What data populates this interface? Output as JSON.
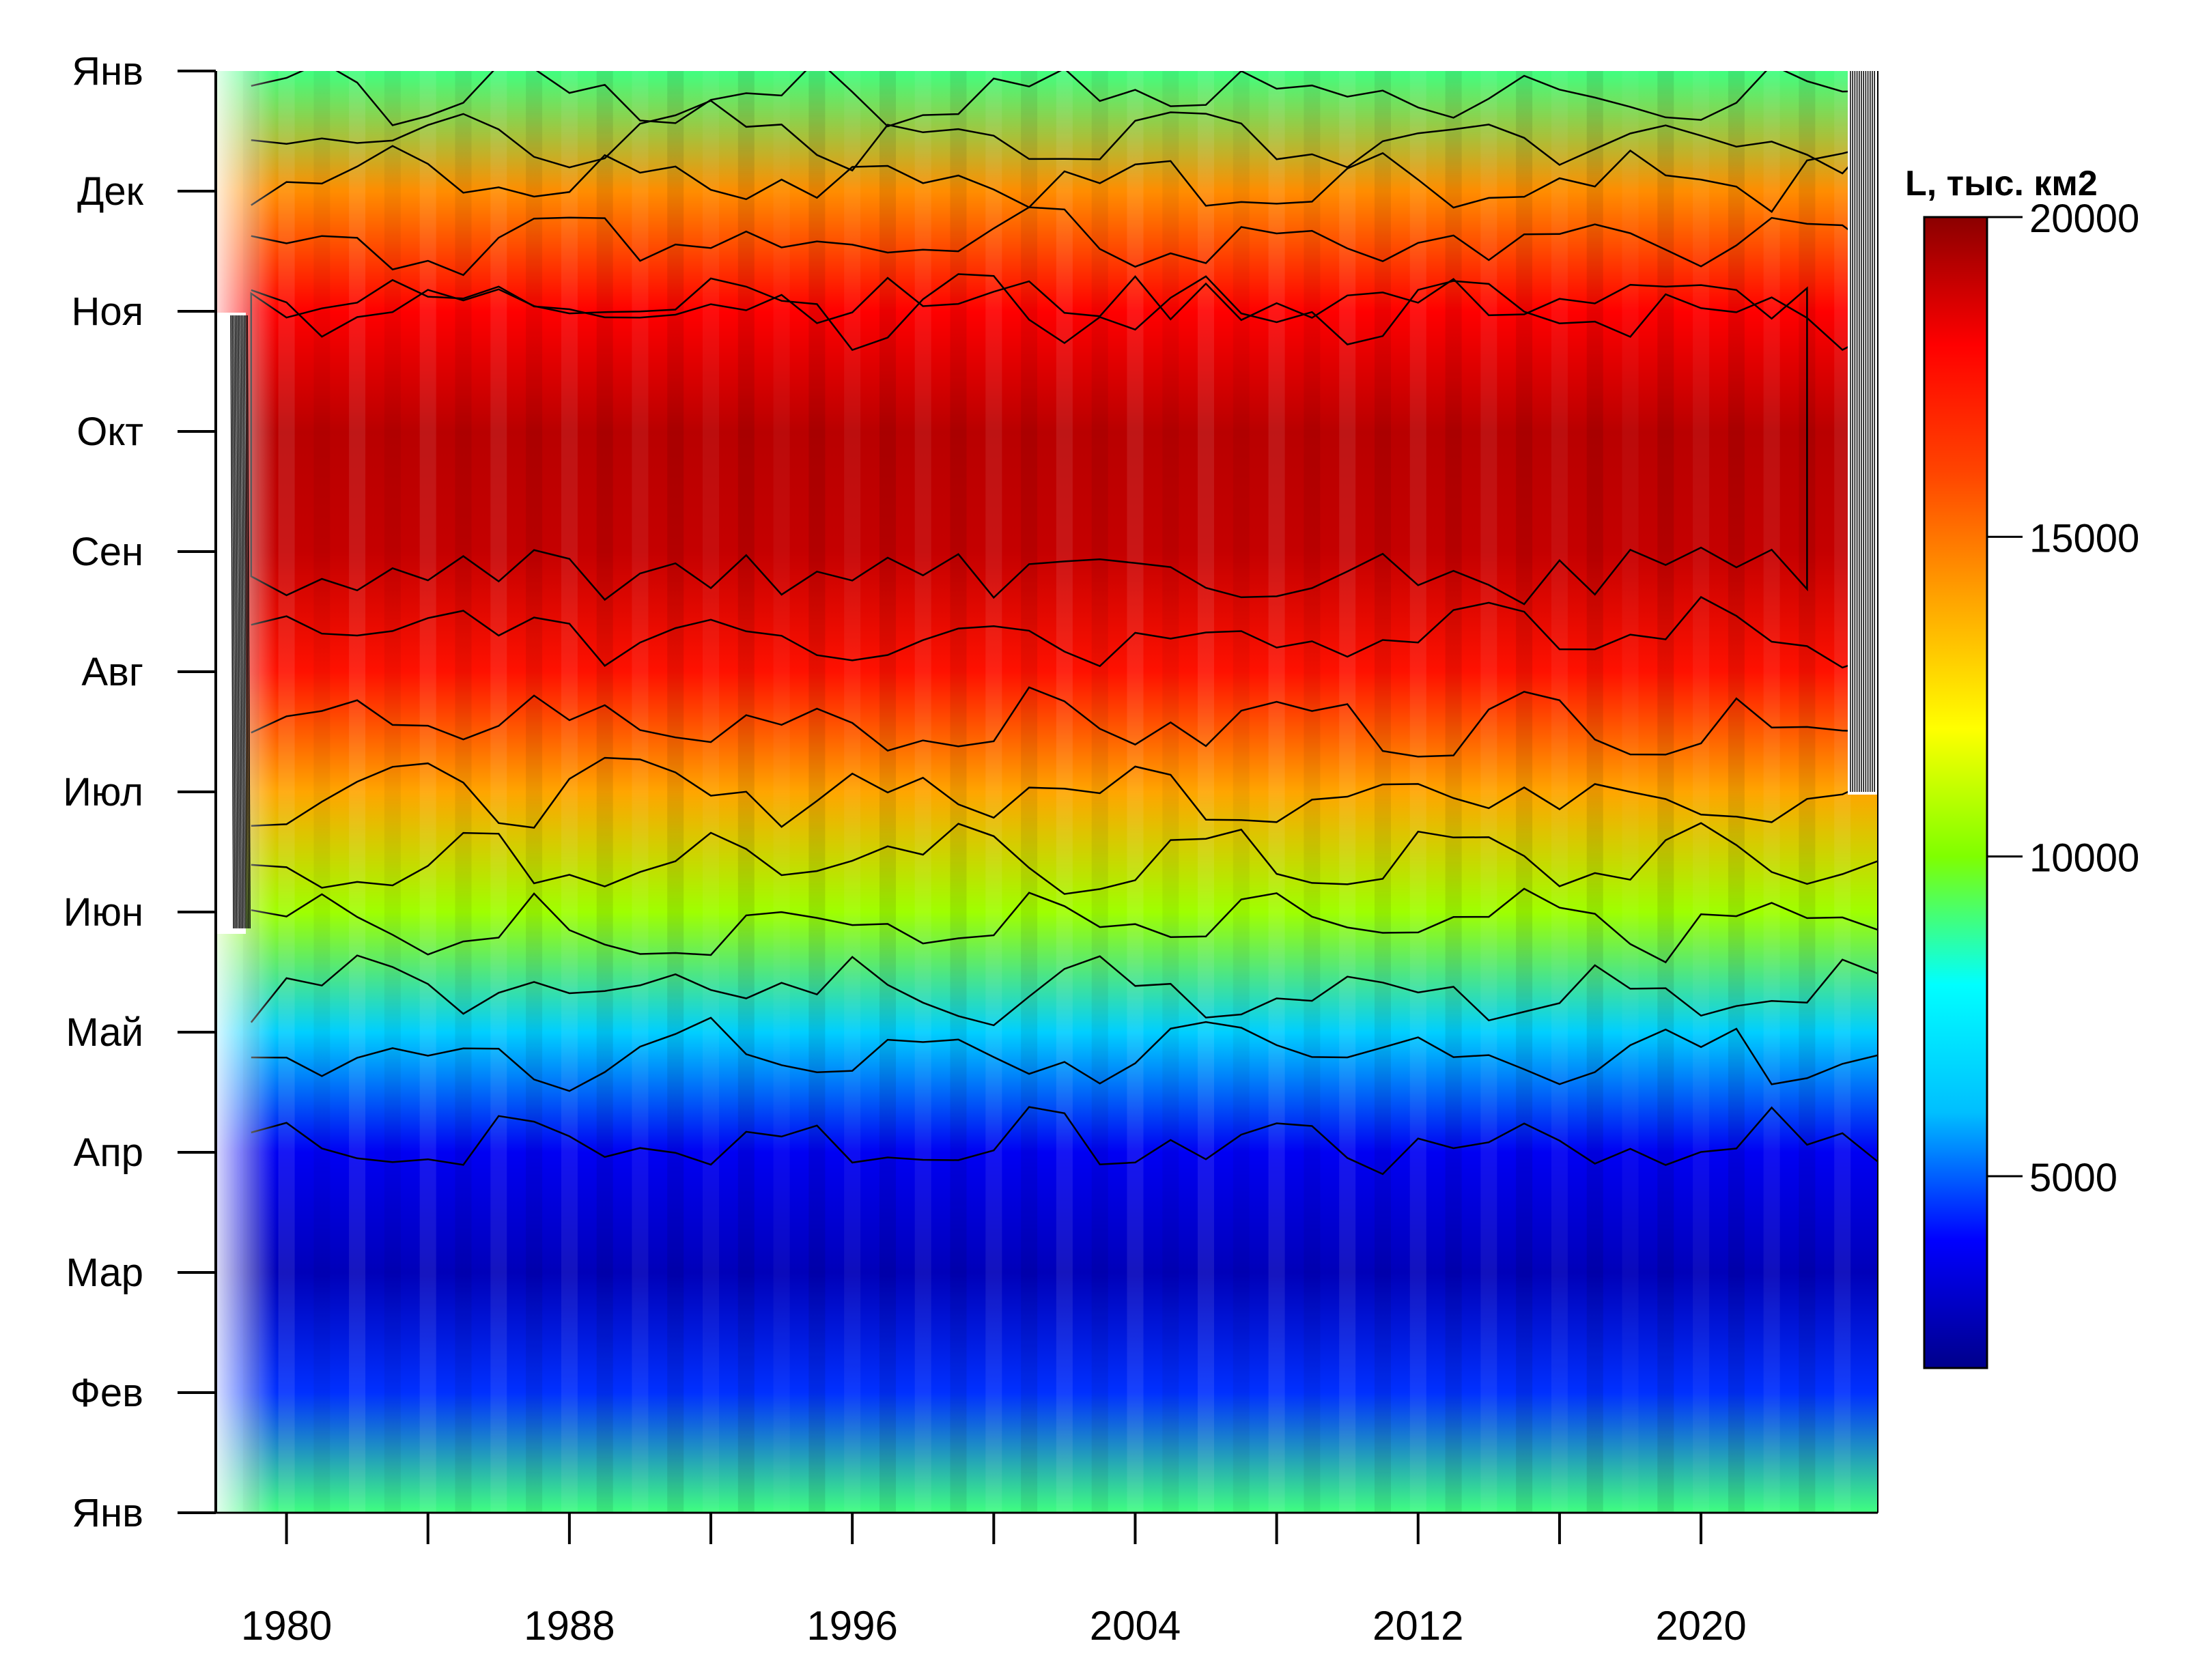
{
  "chart_data": {
    "type": "heatmap",
    "title": "",
    "xlabel": "",
    "ylabel": "",
    "x_tick_labels": [
      "1980",
      "1988",
      "1996",
      "2004",
      "2012",
      "2020"
    ],
    "x_tick_years": [
      1980,
      1984,
      1988,
      1992,
      1996,
      2000,
      2004,
      2008,
      2012,
      2016,
      2020
    ],
    "xlim": [
      1978,
      2025
    ],
    "y_tick_labels": [
      "Янв",
      "Фев",
      "Мар",
      "Апр",
      "Май",
      "Июн",
      "Июл",
      "Авг",
      "Сен",
      "Окт",
      "Ноя",
      "Дек",
      "Янв"
    ],
    "ylim_months": [
      0,
      12
    ],
    "colorbar": {
      "title": "L, тыс. км2",
      "min": 2000,
      "max": 20000,
      "ticks": [
        5000,
        10000,
        15000,
        20000
      ],
      "colors": [
        "#00008B",
        "#0000FF",
        "#00BFFF",
        "#00FFFF",
        "#7FFF00",
        "#FFFF00",
        "#FFA500",
        "#FF4500",
        "#FF0000",
        "#8B0000"
      ]
    },
    "contour_interval": 2000,
    "series": [
      {
        "month": 0,
        "value": 9000
      },
      {
        "month": 1,
        "value": 4500
      },
      {
        "month": 2,
        "value": 2800
      },
      {
        "month": 3,
        "value": 3800
      },
      {
        "month": 4,
        "value": 6500
      },
      {
        "month": 5,
        "value": 10500
      },
      {
        "month": 6,
        "value": 14000
      },
      {
        "month": 7,
        "value": 17500
      },
      {
        "month": 8,
        "value": 19000
      },
      {
        "month": 9,
        "value": 19200
      },
      {
        "month": 10,
        "value": 18000
      },
      {
        "month": 11,
        "value": 14500
      },
      {
        "month": 12,
        "value": 9000
      }
    ]
  }
}
